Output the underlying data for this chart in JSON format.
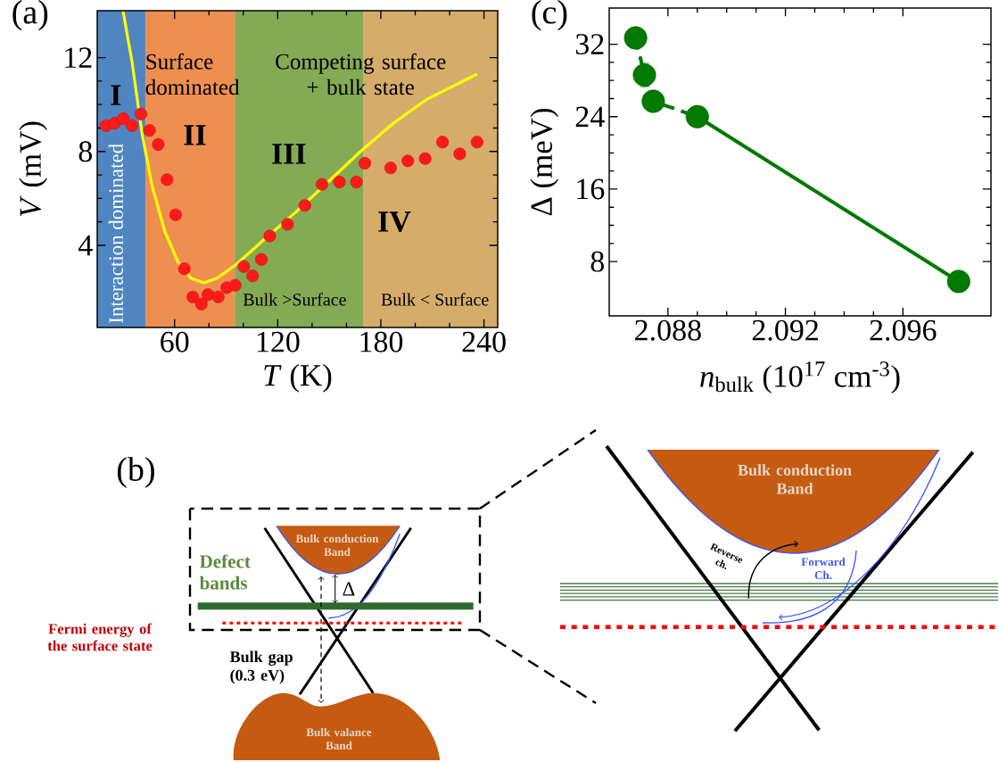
{
  "chart_data": [
    {
      "type": "scatter",
      "title": "(a)",
      "xlabel": "*T* (K)",
      "ylabel": "*V* (mV)",
      "xlim": [
        15,
        248
      ],
      "ylim": [
        0.5,
        14
      ],
      "xticks": [
        60,
        120,
        180,
        240
      ],
      "yticks": [
        4,
        8,
        12
      ],
      "series": [
        {
          "type": "scatter",
          "color": "#ff1a1a",
          "marker": "circle",
          "x": [
            20.1,
            25.1,
            30.2,
            35.3,
            40.4,
            45.4,
            50.5,
            55.6,
            60.6,
            65.7,
            70.6,
            75.6,
            79.4,
            85.4,
            90.4,
            95.3,
            100.3,
            105.4,
            110.5,
            115.4,
            125.7,
            135.8,
            145.8,
            155.9,
            165.8,
            170.7,
            185.7,
            195.7,
            205.8,
            215.9,
            225.9,
            236.0
          ],
          "values": [
            9.1,
            9.2,
            9.4,
            9.1,
            9.6,
            8.9,
            8.3,
            6.8,
            5.3,
            3.0,
            1.8,
            1.5,
            1.9,
            1.8,
            2.2,
            2.3,
            3.1,
            2.7,
            3.4,
            4.4,
            4.9,
            5.7,
            6.6,
            6.7,
            6.7,
            7.5,
            7.3,
            7.6,
            7.7,
            8.4,
            7.9,
            8.4
          ]
        },
        {
          "type": "line",
          "color": "#ffff00",
          "marker": "none",
          "x": [
            30.0,
            35.3,
            41.0,
            46.7,
            54.3,
            61.9,
            69.5,
            77.1,
            84.7,
            96.1,
            111.3,
            130.3,
            149.2,
            168.2,
            187.2,
            206.2,
            225.2,
            236.0
          ],
          "values": [
            14.0,
            11.8,
            8.8,
            6.6,
            4.6,
            3.3,
            2.6,
            2.4,
            2.6,
            3.2,
            4.2,
            5.4,
            6.7,
            8.0,
            9.2,
            10.2,
            10.9,
            11.3
          ]
        }
      ],
      "bands": [
        {
          "axis": "x",
          "from": 15,
          "to": 43,
          "color": "#4f86c2"
        },
        {
          "axis": "x",
          "from": 43,
          "to": 95,
          "color": "#ee8f52"
        },
        {
          "axis": "x",
          "from": 95,
          "to": 170,
          "color": "#84aa55"
        },
        {
          "axis": "x",
          "from": 170,
          "to": 248,
          "color": "#d6ac6a"
        }
      ],
      "annotations": [
        "I",
        "Surface dominated",
        "II",
        "Competing surface + bulk state",
        "III",
        "IV",
        "Interaction dominated",
        "Bulk >Surface",
        "Bulk < Surface"
      ]
    },
    {
      "type": "line",
      "title": "(c)",
      "xlabel": "*n*$_{bulk}$ (10$^{17}$ cm$^{-3}$)",
      "ylabel": "Δ (meV)",
      "xlim": [
        2.086,
        2.099
      ],
      "ylim": [
        2,
        36
      ],
      "xticks": [
        2.088,
        2.092,
        2.096
      ],
      "yticks": [
        8,
        16,
        24,
        32
      ],
      "series": [
        {
          "color": "#007a00",
          "marker": "none",
          "line_style": "dashed",
          "x": [
            2.0869,
            2.0872,
            2.0875,
            2.089
          ],
          "values": [
            32.7,
            28.6,
            25.7,
            24.0
          ]
        },
        {
          "color": "#007a00",
          "marker": "none",
          "line_style": "solid",
          "x": [
            2.089,
            2.0979
          ],
          "values": [
            24.0,
            5.8
          ]
        },
        {
          "type": "scatter",
          "color": "#007a00",
          "marker": "circle",
          "x": [
            2.0869,
            2.0872,
            2.0875,
            2.089,
            2.0979
          ],
          "values": [
            32.7,
            28.6,
            25.7,
            24.0,
            5.8
          ],
          "errors": [
            null,
            1.3,
            null,
            null,
            null
          ]
        }
      ]
    },
    {
      "type": "other",
      "title": "(b)",
      "annotations": [
        "Bulk conduction Band",
        "Defect bands",
        "Δ",
        "Fermi energy of the surface state",
        "Bulk gap (0.3 eV)",
        "Bulk valance Band",
        "Bulk conduction Band",
        "Reverse ch.",
        "Forward Ch."
      ]
    }
  ]
}
